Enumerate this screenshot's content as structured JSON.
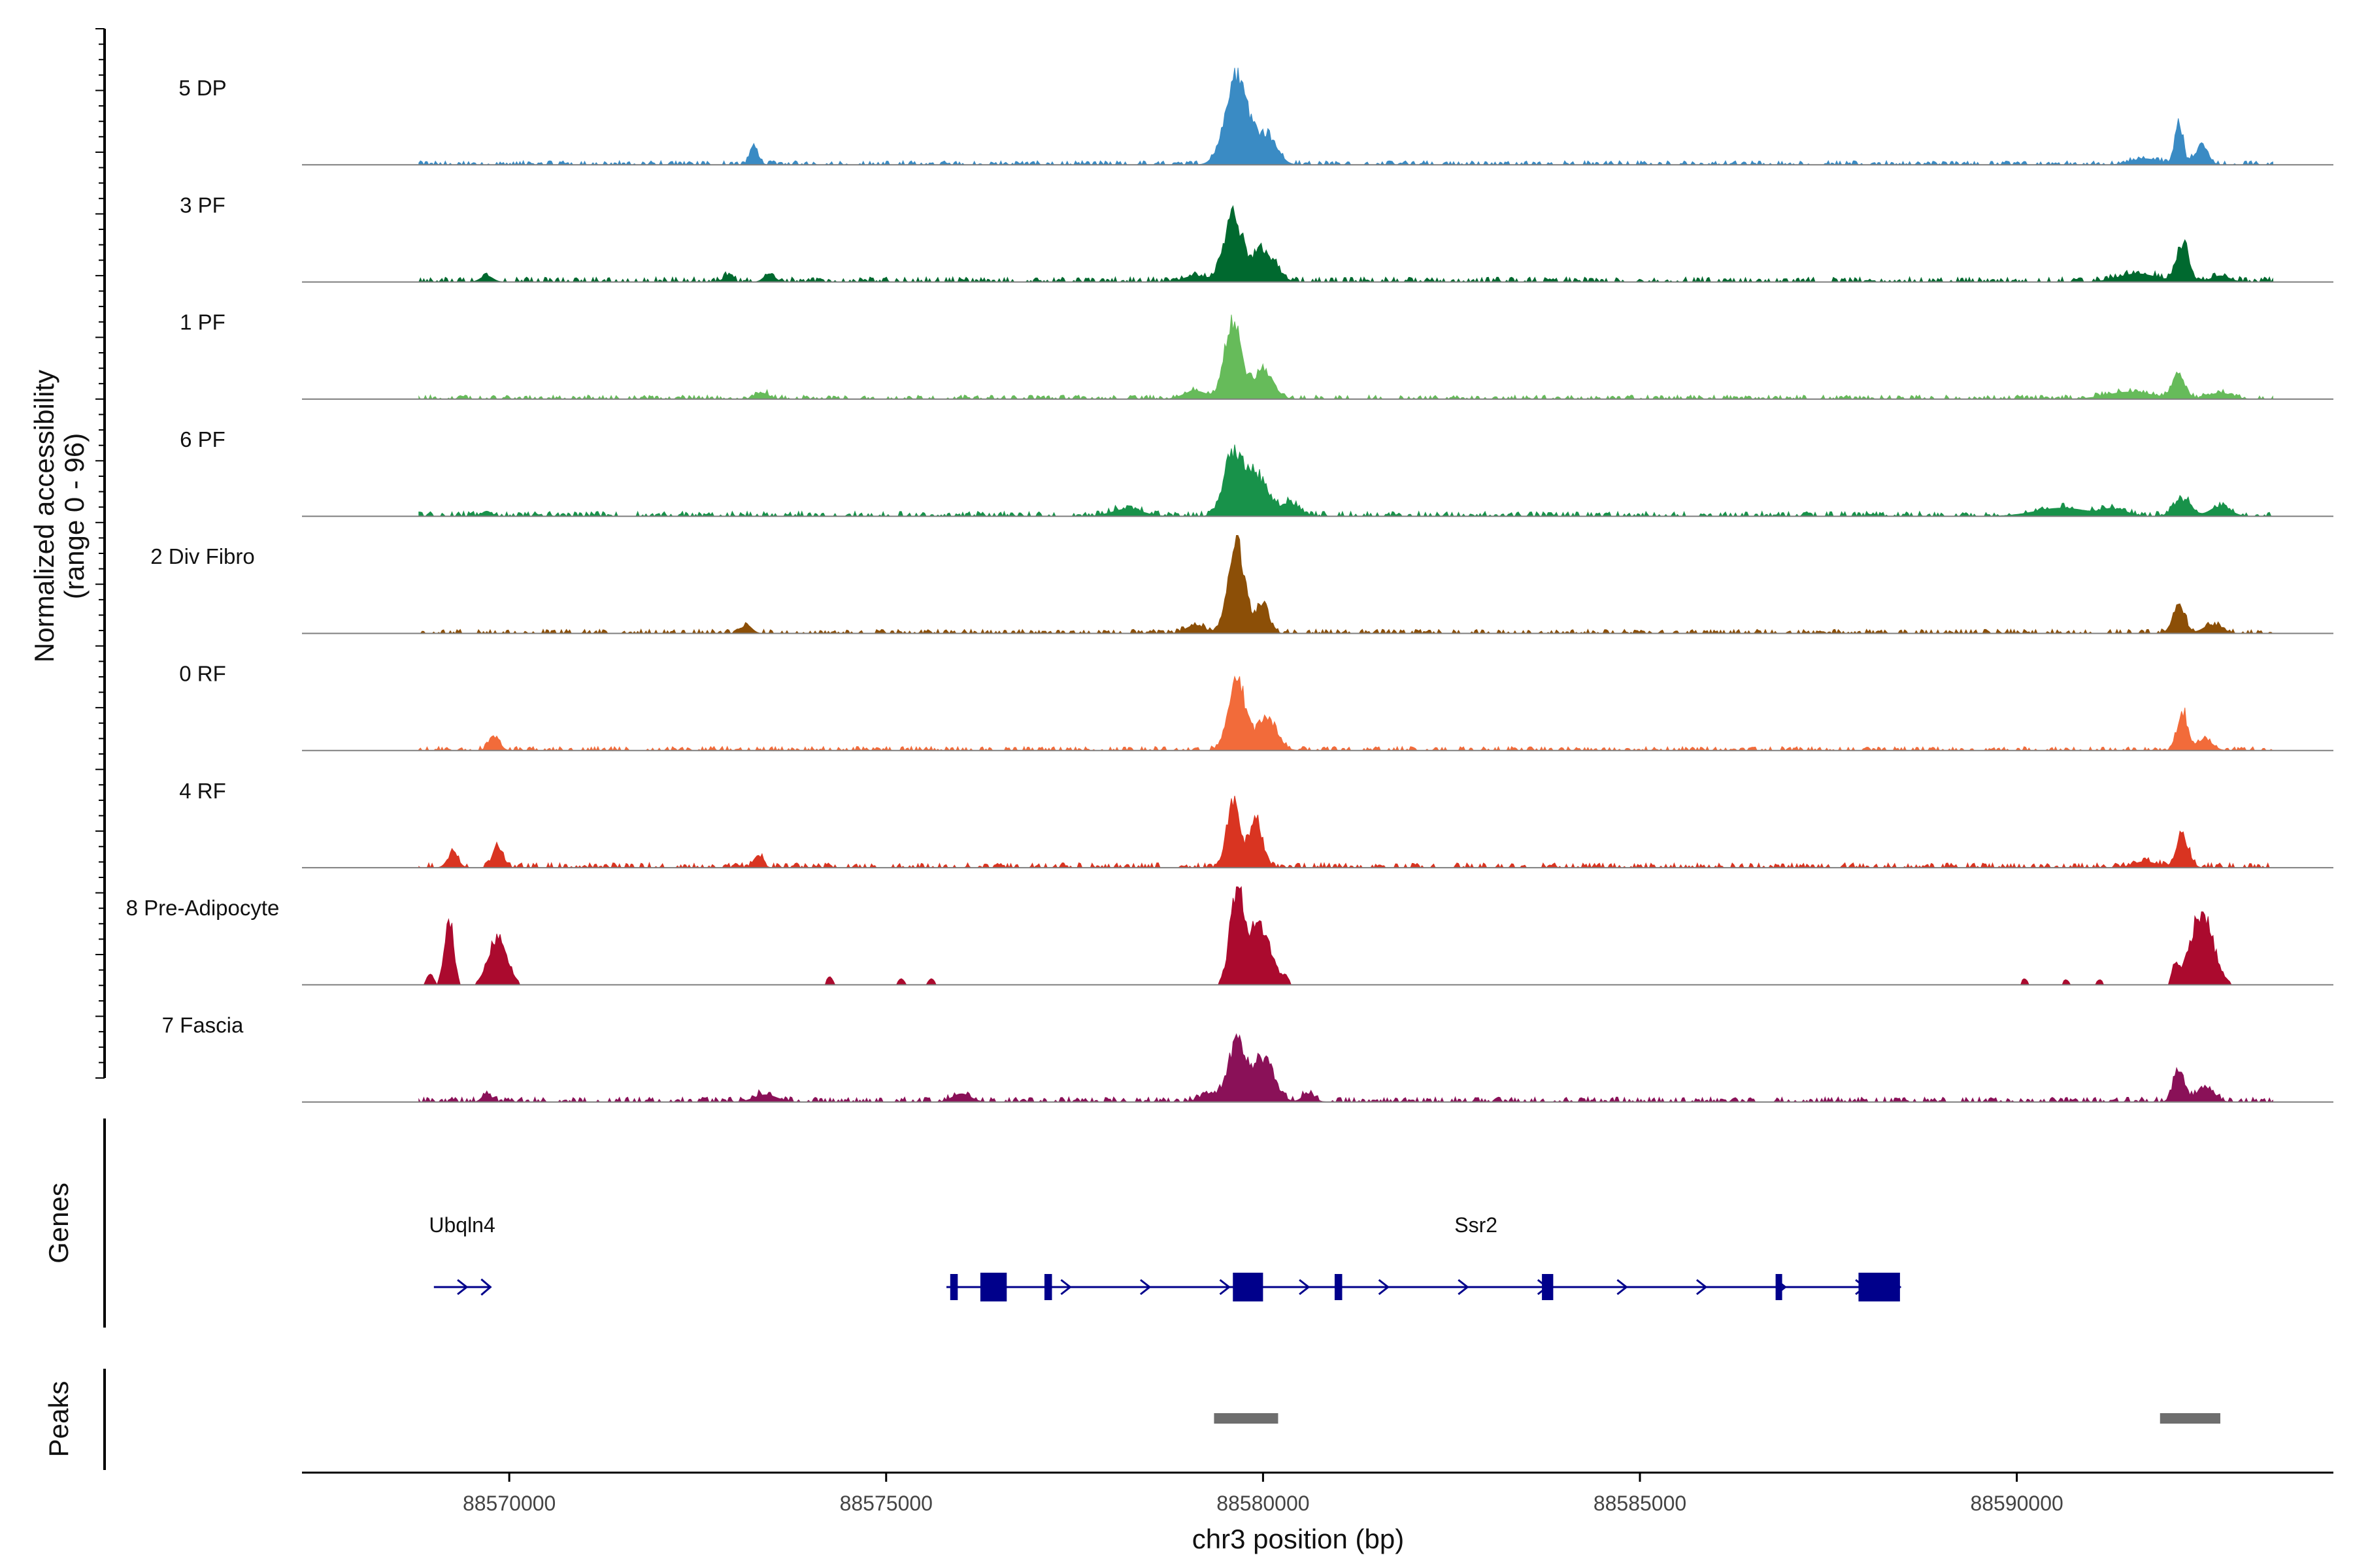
{
  "chart_data": {
    "type": "area",
    "title": "",
    "ylabel_line1": "Normalized accessibility",
    "ylabel_line2": "(range 0 - 96)",
    "y_range": [
      0,
      96
    ],
    "xlabel": "chr3 position (bp)",
    "x_range": [
      88567250,
      88594200
    ],
    "x_ticks": [
      88570000,
      88575000,
      88580000,
      88585000,
      88590000
    ],
    "x_tick_labels": [
      "88570000",
      "88575000",
      "88580000",
      "88585000",
      "88590000"
    ],
    "data_start": 88568800,
    "data_end": 88593400,
    "tracks": [
      {
        "name": "5 DP",
        "color": "#3a8bc4",
        "baseline": 2.5,
        "peaks": [
          [
            88573250,
            18,
            55
          ],
          [
            88579650,
            88,
            150
          ],
          [
            88580050,
            30,
            130
          ],
          [
            88592150,
            42,
            55
          ],
          [
            88592450,
            20,
            80
          ],
          [
            88591700,
            6,
            180
          ]
        ]
      },
      {
        "name": "3 PF",
        "color": "#00692f",
        "baseline": 3,
        "peaks": [
          [
            88569700,
            6,
            80
          ],
          [
            88572900,
            6,
            60
          ],
          [
            88573450,
            8,
            70
          ],
          [
            88579100,
            6,
            150
          ],
          [
            88579600,
            62,
            120
          ],
          [
            88580000,
            32,
            150
          ],
          [
            88592200,
            38,
            80
          ],
          [
            88591600,
            8,
            250
          ],
          [
            88592700,
            6,
            120
          ]
        ]
      },
      {
        "name": "1 PF",
        "color": "#66bb5a",
        "baseline": 2.5,
        "peaks": [
          [
            88573350,
            6,
            90
          ],
          [
            88579100,
            8,
            150
          ],
          [
            88579600,
            75,
            110
          ],
          [
            88580000,
            28,
            130
          ],
          [
            88592150,
            25,
            80
          ],
          [
            88591500,
            7,
            300
          ],
          [
            88592700,
            6,
            150
          ]
        ]
      },
      {
        "name": "6 PF",
        "color": "#18924a",
        "baseline": 3,
        "peaks": [
          [
            88569700,
            5,
            60
          ],
          [
            88578200,
            7,
            200
          ],
          [
            88579600,
            58,
            120
          ],
          [
            88579900,
            42,
            150
          ],
          [
            88580350,
            14,
            120
          ],
          [
            88590600,
            8,
            350
          ],
          [
            88591300,
            7,
            150
          ],
          [
            88592200,
            17,
            110
          ],
          [
            88592700,
            10,
            130
          ]
        ]
      },
      {
        "name": "2 Div Fibro",
        "color": "#8c4f07",
        "baseline": 2.5,
        "peaks": [
          [
            88573150,
            8,
            70
          ],
          [
            88579100,
            8,
            120
          ],
          [
            88579650,
            92,
            110
          ],
          [
            88580000,
            28,
            80
          ],
          [
            88592150,
            28,
            80
          ],
          [
            88592600,
            9,
            120
          ]
        ]
      },
      {
        "name": "0 RF",
        "color": "#f26b3a",
        "baseline": 2.5,
        "peaks": [
          [
            88569800,
            14,
            70
          ],
          [
            88579650,
            70,
            110
          ],
          [
            88580050,
            32,
            130
          ],
          [
            88592200,
            38,
            70
          ],
          [
            88592500,
            10,
            100
          ]
        ]
      },
      {
        "name": "4 RF",
        "color": "#d93421",
        "baseline": 3,
        "peaks": [
          [
            88569250,
            14,
            70
          ],
          [
            88569850,
            20,
            70
          ],
          [
            88573300,
            12,
            60
          ],
          [
            88579600,
            67,
            80
          ],
          [
            88579900,
            50,
            90
          ],
          [
            88592200,
            32,
            80
          ],
          [
            88591700,
            6,
            150
          ]
        ]
      },
      {
        "name": "8 Pre-Adipocyte",
        "color": "#ab0a2e",
        "baseline": 0,
        "peaks": [
          [
            88569200,
            68,
            60
          ],
          [
            88569850,
            50,
            120
          ],
          [
            88568950,
            12,
            40
          ],
          [
            88579650,
            92,
            90
          ],
          [
            88579950,
            60,
            150
          ],
          [
            88592450,
            74,
            150
          ],
          [
            88592100,
            20,
            40
          ],
          [
            88574250,
            8,
            40
          ],
          [
            88575200,
            6,
            40
          ],
          [
            88575600,
            6,
            40
          ],
          [
            88580300,
            6,
            40
          ],
          [
            88590100,
            6,
            40
          ],
          [
            88590650,
            5,
            40
          ],
          [
            88591100,
            5,
            40
          ]
        ]
      },
      {
        "name": "7 Fascia",
        "color": "#8a1158",
        "baseline": 3,
        "peaks": [
          [
            88569700,
            8,
            60
          ],
          [
            88573400,
            7,
            150
          ],
          [
            88576000,
            8,
            120
          ],
          [
            88579300,
            8,
            120
          ],
          [
            88579650,
            60,
            110
          ],
          [
            88580000,
            45,
            140
          ],
          [
            88580600,
            8,
            80
          ],
          [
            88592150,
            35,
            70
          ],
          [
            88592500,
            15,
            110
          ]
        ]
      }
    ],
    "genes": {
      "title": "Genes",
      "color": "#00008b",
      "items": [
        {
          "name": "Ubqln4",
          "start": 88569000,
          "end": 88569750,
          "strand": "+",
          "exons": []
        },
        {
          "name": "Ssr2",
          "start": 88575800,
          "end": 88588450,
          "strand": "+",
          "exons": [
            [
              88575850,
              88575950,
              "small"
            ],
            [
              88576250,
              88576600,
              "big"
            ],
            [
              88577100,
              88577200,
              "small"
            ],
            [
              88579600,
              88580000,
              "big"
            ],
            [
              88580950,
              88581050,
              "small"
            ],
            [
              88583700,
              88583850,
              "small"
            ],
            [
              88586800,
              88586880,
              "small"
            ],
            [
              88587900,
              88588450,
              "big"
            ]
          ]
        }
      ]
    },
    "peaks_track": {
      "title": "Peaks",
      "color": "#6e6e6e",
      "regions": [
        [
          88579350,
          88580200
        ],
        [
          88591900,
          88592700
        ]
      ]
    }
  }
}
